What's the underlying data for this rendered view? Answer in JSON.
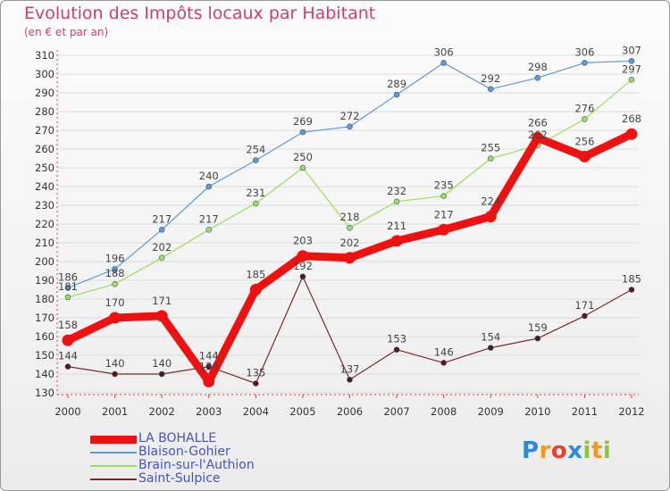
{
  "chart_data": {
    "type": "line",
    "title": "Evolution des Impôts locaux par Habitant",
    "subtitle": "(en € et par an)",
    "xlabel": "",
    "ylabel": "",
    "ylim": [
      130,
      310
    ],
    "y_ticks": [
      130,
      140,
      150,
      160,
      170,
      180,
      190,
      200,
      210,
      220,
      230,
      240,
      250,
      260,
      270,
      280,
      290,
      300,
      310
    ],
    "categories": [
      "2000",
      "2001",
      "2002",
      "2003",
      "2004",
      "2005",
      "2006",
      "2007",
      "2008",
      "2009",
      "2010",
      "2011",
      "2012"
    ],
    "grid": true,
    "legend_position": "bottom-left",
    "series": [
      {
        "name": "Blaison-Gohier",
        "color": "#5f9ad4",
        "values": [
          186,
          196,
          217,
          240,
          254,
          269,
          272,
          289,
          306,
          292,
          298,
          306,
          307
        ]
      },
      {
        "name": "Brain-sur-l'Authion",
        "color": "#9ae05b",
        "values": [
          181,
          188,
          202,
          217,
          231,
          250,
          218,
          232,
          235,
          255,
          262,
          276,
          297
        ]
      },
      {
        "name": "Saint-Sulpice",
        "color": "#7a2a2a",
        "values": [
          144,
          140,
          140,
          144,
          135,
          192,
          137,
          153,
          146,
          154,
          159,
          171,
          185
        ]
      },
      {
        "name": "LA BOHALLE",
        "color": "#ee1111",
        "values": [
          158,
          170,
          171,
          136,
          185,
          203,
          202,
          211,
          217,
          224,
          266,
          256,
          268
        ]
      }
    ],
    "legend_order": [
      "LA BOHALLE",
      "Blaison-Gohier",
      "Brain-sur-l'Authion",
      "Saint-Sulpice"
    ]
  },
  "brand": {
    "letters": [
      "P",
      "r",
      "o",
      "x",
      "i",
      "t",
      "i"
    ],
    "colors": [
      "#2d8ad6",
      "#f29a1c",
      "#e8412d",
      "#2d8ad6",
      "#8cc43c",
      "#f29a1c",
      "#8cc43c"
    ]
  }
}
